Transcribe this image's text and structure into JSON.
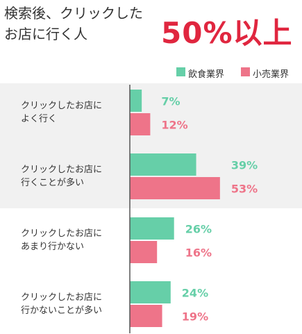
{
  "chart_data": {
    "type": "bar",
    "orientation": "horizontal",
    "title": "検索後、クリックした\nお店に行く人",
    "headline": "50%以上",
    "categories": [
      "クリックしたお店に\nよく行く",
      "クリックしたお店に\n行くことが多い",
      "クリックしたお店に\nあまり行かない",
      "クリックしたお店に\n行かないことが多い"
    ],
    "series": [
      {
        "name": "飲食業界",
        "color": "#66cfa8",
        "values": [
          7,
          39,
          26,
          24
        ],
        "value_labels": [
          "7%",
          "39%",
          "26%",
          "24%"
        ]
      },
      {
        "name": "小売業界",
        "color": "#ee7489",
        "values": [
          12,
          53,
          16,
          19
        ],
        "value_labels": [
          "12%",
          "53%",
          "16%",
          "19%"
        ]
      }
    ],
    "legend": "top-right"
  }
}
